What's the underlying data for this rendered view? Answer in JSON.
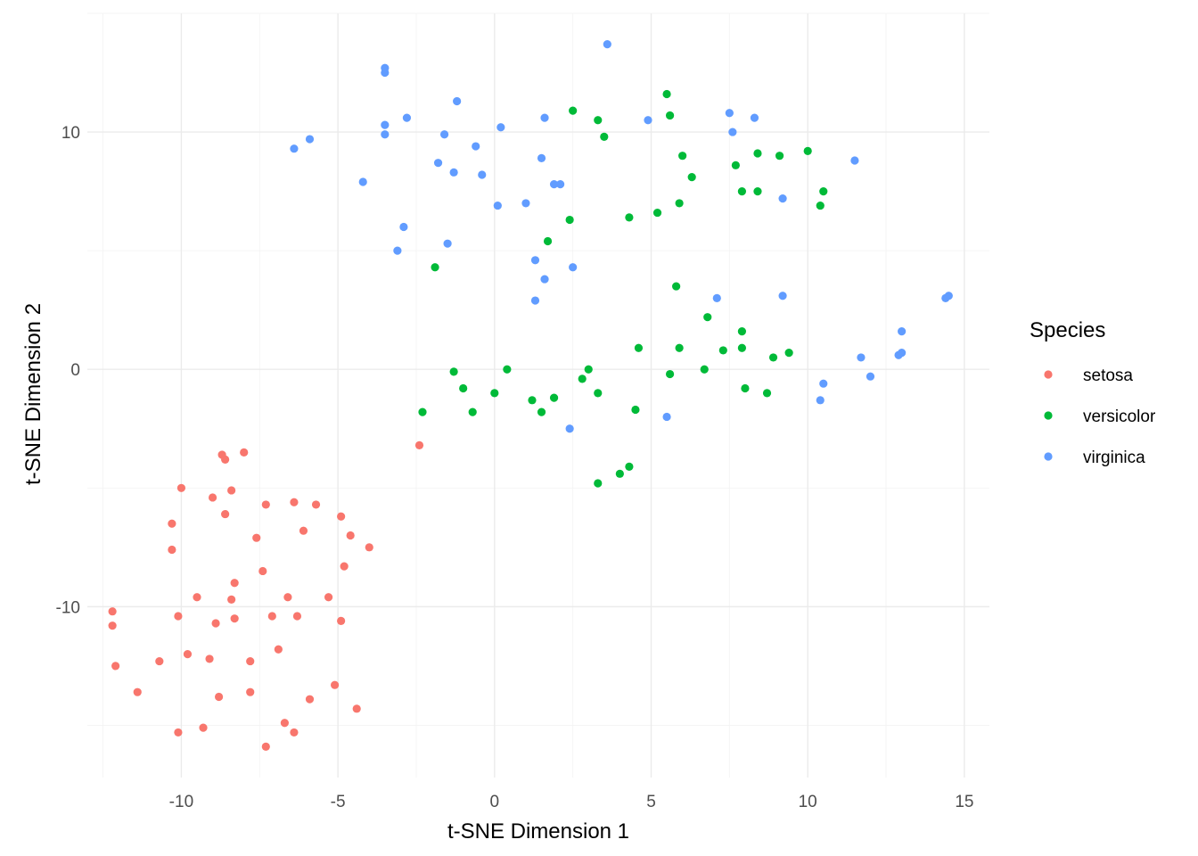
{
  "chart_data": {
    "type": "scatter",
    "title": "",
    "xlabel": "t-SNE Dimension 1",
    "ylabel": "t-SNE Dimension 2",
    "xlim": [
      -13,
      15.8
    ],
    "ylim": [
      -17.2,
      15
    ],
    "xticks": [
      -10,
      -5,
      0,
      5,
      10,
      15
    ],
    "yticks": [
      -10,
      0,
      10
    ],
    "grid": true,
    "legend": {
      "title": "Species",
      "position": "right"
    },
    "series": [
      {
        "name": "setosa",
        "color": "#F8766D",
        "points": [
          [
            -2.4,
            -3.2
          ],
          [
            -8.7,
            -3.6
          ],
          [
            -8.6,
            -3.8
          ],
          [
            -8.0,
            -3.5
          ],
          [
            -10.0,
            -5.0
          ],
          [
            -8.4,
            -5.1
          ],
          [
            -9.0,
            -5.4
          ],
          [
            -7.3,
            -5.7
          ],
          [
            -6.4,
            -5.6
          ],
          [
            -5.7,
            -5.7
          ],
          [
            -4.9,
            -6.2
          ],
          [
            -8.6,
            -6.1
          ],
          [
            -10.3,
            -6.5
          ],
          [
            -6.1,
            -6.8
          ],
          [
            -4.6,
            -7.0
          ],
          [
            -7.6,
            -7.1
          ],
          [
            -4.0,
            -7.5
          ],
          [
            -10.3,
            -7.6
          ],
          [
            -7.4,
            -8.5
          ],
          [
            -4.8,
            -8.3
          ],
          [
            -8.3,
            -9.0
          ],
          [
            -9.5,
            -9.6
          ],
          [
            -8.4,
            -9.7
          ],
          [
            -6.6,
            -9.6
          ],
          [
            -5.3,
            -9.6
          ],
          [
            -12.2,
            -10.2
          ],
          [
            -12.2,
            -10.8
          ],
          [
            -10.1,
            -10.4
          ],
          [
            -8.3,
            -10.5
          ],
          [
            -8.9,
            -10.7
          ],
          [
            -7.1,
            -10.4
          ],
          [
            -6.3,
            -10.4
          ],
          [
            -4.9,
            -10.6
          ],
          [
            -12.1,
            -12.5
          ],
          [
            -10.7,
            -12.3
          ],
          [
            -9.8,
            -12.0
          ],
          [
            -9.1,
            -12.2
          ],
          [
            -7.8,
            -12.3
          ],
          [
            -6.9,
            -11.8
          ],
          [
            -11.4,
            -13.6
          ],
          [
            -8.8,
            -13.8
          ],
          [
            -7.8,
            -13.6
          ],
          [
            -5.1,
            -13.3
          ],
          [
            -5.9,
            -13.9
          ],
          [
            -4.4,
            -14.3
          ],
          [
            -10.1,
            -15.3
          ],
          [
            -9.3,
            -15.1
          ],
          [
            -6.7,
            -14.9
          ],
          [
            -6.4,
            -15.3
          ],
          [
            -7.3,
            -15.9
          ]
        ]
      },
      {
        "name": "versicolor",
        "color": "#00BA38",
        "points": [
          [
            5.5,
            11.6
          ],
          [
            2.5,
            10.9
          ],
          [
            3.3,
            10.5
          ],
          [
            5.6,
            10.7
          ],
          [
            3.5,
            9.8
          ],
          [
            6.0,
            9.0
          ],
          [
            8.4,
            9.1
          ],
          [
            9.1,
            9.0
          ],
          [
            10.0,
            9.2
          ],
          [
            7.7,
            8.6
          ],
          [
            6.3,
            8.1
          ],
          [
            7.9,
            7.5
          ],
          [
            8.4,
            7.5
          ],
          [
            10.5,
            7.5
          ],
          [
            5.9,
            7.0
          ],
          [
            10.4,
            6.9
          ],
          [
            5.2,
            6.6
          ],
          [
            4.3,
            6.4
          ],
          [
            2.4,
            6.3
          ],
          [
            1.7,
            5.4
          ],
          [
            -1.9,
            4.3
          ],
          [
            5.8,
            3.5
          ],
          [
            6.8,
            2.2
          ],
          [
            7.9,
            1.6
          ],
          [
            4.6,
            0.9
          ],
          [
            5.9,
            0.9
          ],
          [
            7.3,
            0.8
          ],
          [
            7.9,
            0.9
          ],
          [
            8.9,
            0.5
          ],
          [
            9.4,
            0.7
          ],
          [
            -1.3,
            -0.1
          ],
          [
            0.4,
            0.0
          ],
          [
            3.0,
            0.0
          ],
          [
            6.7,
            0.0
          ],
          [
            5.6,
            -0.2
          ],
          [
            2.8,
            -0.4
          ],
          [
            -1.0,
            -0.8
          ],
          [
            0.0,
            -1.0
          ],
          [
            3.3,
            -1.0
          ],
          [
            8.0,
            -0.8
          ],
          [
            8.7,
            -1.0
          ],
          [
            1.2,
            -1.3
          ],
          [
            1.9,
            -1.2
          ],
          [
            -2.3,
            -1.8
          ],
          [
            -0.7,
            -1.8
          ],
          [
            1.5,
            -1.8
          ],
          [
            4.5,
            -1.7
          ],
          [
            4.3,
            -4.1
          ],
          [
            4.0,
            -4.4
          ],
          [
            3.3,
            -4.8
          ]
        ]
      },
      {
        "name": "virginica",
        "color": "#619CFF",
        "points": [
          [
            3.6,
            13.7
          ],
          [
            -3.5,
            12.7
          ],
          [
            -3.5,
            12.5
          ],
          [
            -1.2,
            11.3
          ],
          [
            -2.8,
            10.6
          ],
          [
            -3.5,
            10.3
          ],
          [
            -3.5,
            9.9
          ],
          [
            -1.6,
            9.9
          ],
          [
            0.2,
            10.2
          ],
          [
            1.6,
            10.6
          ],
          [
            4.9,
            10.5
          ],
          [
            7.5,
            10.8
          ],
          [
            7.6,
            10.0
          ],
          [
            8.3,
            10.6
          ],
          [
            -6.4,
            9.3
          ],
          [
            -5.9,
            9.7
          ],
          [
            -0.6,
            9.4
          ],
          [
            1.5,
            8.9
          ],
          [
            -1.8,
            8.7
          ],
          [
            -1.3,
            8.3
          ],
          [
            -0.4,
            8.2
          ],
          [
            11.5,
            8.8
          ],
          [
            -4.2,
            7.9
          ],
          [
            1.9,
            7.8
          ],
          [
            2.1,
            7.8
          ],
          [
            0.1,
            6.9
          ],
          [
            1.0,
            7.0
          ],
          [
            9.2,
            7.2
          ],
          [
            -2.9,
            6.0
          ],
          [
            -1.5,
            5.3
          ],
          [
            -3.1,
            5.0
          ],
          [
            1.3,
            4.6
          ],
          [
            2.5,
            4.3
          ],
          [
            1.6,
            3.8
          ],
          [
            1.3,
            2.9
          ],
          [
            7.1,
            3.0
          ],
          [
            9.2,
            3.1
          ],
          [
            14.5,
            3.1
          ],
          [
            14.4,
            3.0
          ],
          [
            13.0,
            1.6
          ],
          [
            13.0,
            0.7
          ],
          [
            12.9,
            0.6
          ],
          [
            11.7,
            0.5
          ],
          [
            12.0,
            -0.3
          ],
          [
            10.5,
            -0.6
          ],
          [
            10.4,
            -1.3
          ],
          [
            5.5,
            -2.0
          ],
          [
            2.4,
            -2.5
          ]
        ]
      }
    ]
  }
}
